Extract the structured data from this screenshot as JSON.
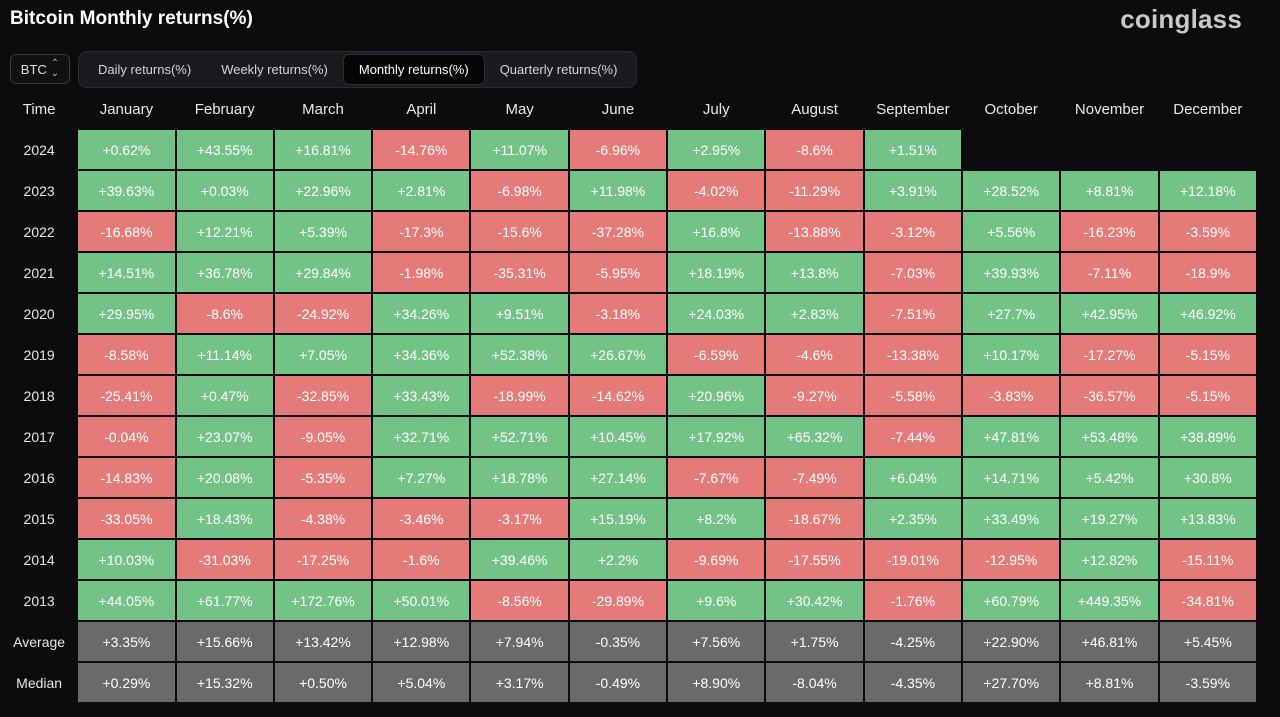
{
  "header": {
    "title": "Bitcoin Monthly returns(%)",
    "brand": "coinglass"
  },
  "asset_select": {
    "value": "BTC"
  },
  "tabs": [
    {
      "label": "Daily returns(%)",
      "active": false
    },
    {
      "label": "Weekly returns(%)",
      "active": false
    },
    {
      "label": "Monthly returns(%)",
      "active": true
    },
    {
      "label": "Quarterly returns(%)",
      "active": false
    }
  ],
  "colors": {
    "positive": "#74c386",
    "negative": "#e57b78",
    "summary": "#6a6a6d",
    "background": "#0c0c0e"
  },
  "table": {
    "corner_label": "Time",
    "months": [
      "January",
      "February",
      "March",
      "April",
      "May",
      "June",
      "July",
      "August",
      "September",
      "October",
      "November",
      "December"
    ],
    "rows": [
      {
        "label": "2024",
        "type": "year",
        "values": [
          "+0.62%",
          "+43.55%",
          "+16.81%",
          "-14.76%",
          "+11.07%",
          "-6.96%",
          "+2.95%",
          "-8.6%",
          "+1.51%",
          "",
          "",
          ""
        ]
      },
      {
        "label": "2023",
        "type": "year",
        "values": [
          "+39.63%",
          "+0.03%",
          "+22.96%",
          "+2.81%",
          "-6.98%",
          "+11.98%",
          "-4.02%",
          "-11.29%",
          "+3.91%",
          "+28.52%",
          "+8.81%",
          "+12.18%"
        ]
      },
      {
        "label": "2022",
        "type": "year",
        "values": [
          "-16.68%",
          "+12.21%",
          "+5.39%",
          "-17.3%",
          "-15.6%",
          "-37.28%",
          "+16.8%",
          "-13.88%",
          "-3.12%",
          "+5.56%",
          "-16.23%",
          "-3.59%"
        ]
      },
      {
        "label": "2021",
        "type": "year",
        "values": [
          "+14.51%",
          "+36.78%",
          "+29.84%",
          "-1.98%",
          "-35.31%",
          "-5.95%",
          "+18.19%",
          "+13.8%",
          "-7.03%",
          "+39.93%",
          "-7.11%",
          "-18.9%"
        ]
      },
      {
        "label": "2020",
        "type": "year",
        "values": [
          "+29.95%",
          "-8.6%",
          "-24.92%",
          "+34.26%",
          "+9.51%",
          "-3.18%",
          "+24.03%",
          "+2.83%",
          "-7.51%",
          "+27.7%",
          "+42.95%",
          "+46.92%"
        ]
      },
      {
        "label": "2019",
        "type": "year",
        "values": [
          "-8.58%",
          "+11.14%",
          "+7.05%",
          "+34.36%",
          "+52.38%",
          "+26.67%",
          "-6.59%",
          "-4.6%",
          "-13.38%",
          "+10.17%",
          "-17.27%",
          "-5.15%"
        ]
      },
      {
        "label": "2018",
        "type": "year",
        "values": [
          "-25.41%",
          "+0.47%",
          "-32.85%",
          "+33.43%",
          "-18.99%",
          "-14.62%",
          "+20.96%",
          "-9.27%",
          "-5.58%",
          "-3.83%",
          "-36.57%",
          "-5.15%"
        ]
      },
      {
        "label": "2017",
        "type": "year",
        "values": [
          "-0.04%",
          "+23.07%",
          "-9.05%",
          "+32.71%",
          "+52.71%",
          "+10.45%",
          "+17.92%",
          "+65.32%",
          "-7.44%",
          "+47.81%",
          "+53.48%",
          "+38.89%"
        ]
      },
      {
        "label": "2016",
        "type": "year",
        "values": [
          "-14.83%",
          "+20.08%",
          "-5.35%",
          "+7.27%",
          "+18.78%",
          "+27.14%",
          "-7.67%",
          "-7.49%",
          "+6.04%",
          "+14.71%",
          "+5.42%",
          "+30.8%"
        ]
      },
      {
        "label": "2015",
        "type": "year",
        "values": [
          "-33.05%",
          "+18.43%",
          "-4.38%",
          "-3.46%",
          "-3.17%",
          "+15.19%",
          "+8.2%",
          "-18.67%",
          "+2.35%",
          "+33.49%",
          "+19.27%",
          "+13.83%"
        ]
      },
      {
        "label": "2014",
        "type": "year",
        "values": [
          "+10.03%",
          "-31.03%",
          "-17.25%",
          "-1.6%",
          "+39.46%",
          "+2.2%",
          "-9.69%",
          "-17.55%",
          "-19.01%",
          "-12.95%",
          "+12.82%",
          "-15.11%"
        ]
      },
      {
        "label": "2013",
        "type": "year",
        "values": [
          "+44.05%",
          "+61.77%",
          "+172.76%",
          "+50.01%",
          "-8.56%",
          "-29.89%",
          "+9.6%",
          "+30.42%",
          "-1.76%",
          "+60.79%",
          "+449.35%",
          "-34.81%"
        ]
      },
      {
        "label": "Average",
        "type": "summary",
        "values": [
          "+3.35%",
          "+15.66%",
          "+13.42%",
          "+12.98%",
          "+7.94%",
          "-0.35%",
          "+7.56%",
          "+1.75%",
          "-4.25%",
          "+22.90%",
          "+46.81%",
          "+5.45%"
        ]
      },
      {
        "label": "Median",
        "type": "summary",
        "values": [
          "+0.29%",
          "+15.32%",
          "+0.50%",
          "+5.04%",
          "+3.17%",
          "-0.49%",
          "+8.90%",
          "-8.04%",
          "-4.35%",
          "+27.70%",
          "+8.81%",
          "-3.59%"
        ]
      }
    ]
  }
}
